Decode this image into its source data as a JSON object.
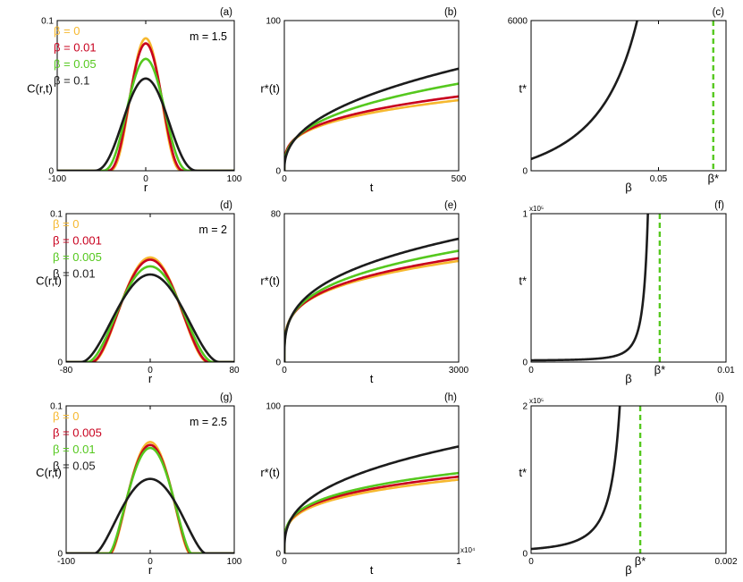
{
  "chart_data": [
    {
      "id": "a",
      "panel_label": "(a)",
      "type": "line",
      "xlabel": "r",
      "ylabel": "C(r,t)",
      "xlim": [
        -100,
        100
      ],
      "ylim": [
        0,
        0.1
      ],
      "xticks": [
        {
          "v": -100,
          "l": "-100"
        },
        {
          "v": 0,
          "l": "0"
        },
        {
          "v": 100,
          "l": "100"
        }
      ],
      "yticks": [
        {
          "v": 0,
          "l": "0"
        },
        {
          "v": 0.1,
          "l": "0.1"
        }
      ],
      "annotation": "m = 1.5",
      "series": [
        {
          "name": "β = 0",
          "color": "#f6b82f",
          "curve": "barenblatt",
          "m": 1.5,
          "peak": 0.0882,
          "radius": 42
        },
        {
          "name": "β = 0.01",
          "color": "#c8001e",
          "curve": "barenblatt",
          "m": 1.5,
          "peak": 0.0848,
          "radius": 44
        },
        {
          "name": "β = 0.05",
          "color": "#55c81e",
          "curve": "barenblatt",
          "m": 1.5,
          "peak": 0.0745,
          "radius": 50
        },
        {
          "name": "β = 0.1",
          "color": "#1c1c1c",
          "curve": "barenblatt",
          "m": 1.5,
          "peak": 0.0614,
          "radius": 60
        }
      ]
    },
    {
      "id": "b",
      "panel_label": "(b)",
      "type": "line",
      "xlabel": "t",
      "ylabel": "r*(t)",
      "xlim": [
        0,
        500
      ],
      "ylim": [
        0,
        100
      ],
      "xticks": [
        {
          "v": 0,
          "l": "0"
        },
        {
          "v": 500,
          "l": "500"
        }
      ],
      "yticks": [
        {
          "v": 0,
          "l": "0"
        },
        {
          "v": 100,
          "l": "100"
        }
      ],
      "series": [
        {
          "name": "β = 0",
          "color": "#f6b82f",
          "curve": "power",
          "t_end": 500,
          "r_end": 47,
          "exponent": 0.286
        },
        {
          "name": "β = 0.01",
          "color": "#c8001e",
          "curve": "power",
          "t_end": 500,
          "r_end": 49.5,
          "exponent": 0.3
        },
        {
          "name": "β = 0.05",
          "color": "#55c81e",
          "curve": "power",
          "t_end": 500,
          "r_end": 58,
          "exponent": 0.36
        },
        {
          "name": "β = 0.1",
          "color": "#1c1c1c",
          "curve": "power",
          "t_end": 500,
          "r_end": 68,
          "exponent": 0.42
        }
      ]
    },
    {
      "id": "c",
      "panel_label": "(c)",
      "type": "line",
      "xlabel": "β",
      "ylabel": "t*",
      "xlim": [
        0,
        0.0765
      ],
      "ylim": [
        0,
        6000
      ],
      "xticks": [
        {
          "v": 0.05,
          "l": "0.05"
        }
      ],
      "yticks": [
        {
          "v": 0,
          "l": "0"
        },
        {
          "v": 6000,
          "l": "6000"
        }
      ],
      "beta_star": 0.0715,
      "beta_star_label": "β*",
      "series": [
        {
          "name": "t*(β)",
          "color": "#1c1c1c",
          "curve": "blowup",
          "c0": 470,
          "c1": 1450,
          "beta_star": 0.0715,
          "power": 1.8,
          "x_end": 0.0698
        }
      ]
    },
    {
      "id": "d",
      "panel_label": "(d)",
      "type": "line",
      "xlabel": "r",
      "ylabel": "C(r,t)",
      "xlim": [
        -80,
        80
      ],
      "ylim": [
        0,
        0.1
      ],
      "xticks": [
        {
          "v": -80,
          "l": "-80"
        },
        {
          "v": 0,
          "l": "0"
        },
        {
          "v": 80,
          "l": "80"
        }
      ],
      "yticks": [
        {
          "v": 0,
          "l": "0"
        },
        {
          "v": 0.1,
          "l": "0.1"
        }
      ],
      "annotation": "m = 2",
      "series": [
        {
          "name": "β = 0",
          "color": "#f6b82f",
          "curve": "barenblatt",
          "m": 2,
          "peak": 0.0705,
          "radius": 55
        },
        {
          "name": "β = 0.001",
          "color": "#c8001e",
          "curve": "barenblatt",
          "m": 2,
          "peak": 0.069,
          "radius": 56
        },
        {
          "name": "β = 0.005",
          "color": "#55c81e",
          "curve": "barenblatt",
          "m": 2,
          "peak": 0.0645,
          "radius": 60
        },
        {
          "name": "β = 0.01",
          "color": "#1c1c1c",
          "curve": "barenblatt",
          "m": 2,
          "peak": 0.059,
          "radius": 66
        }
      ]
    },
    {
      "id": "e",
      "panel_label": "(e)",
      "type": "line",
      "xlabel": "t",
      "ylabel": "r*(t)",
      "xlim": [
        0,
        3000
      ],
      "ylim": [
        0,
        80
      ],
      "xticks": [
        {
          "v": 0,
          "l": "0"
        },
        {
          "v": 3000,
          "l": "3000"
        }
      ],
      "yticks": [
        {
          "v": 0,
          "l": "0"
        },
        {
          "v": 80,
          "l": "80"
        }
      ],
      "series": [
        {
          "name": "β = 0",
          "color": "#f6b82f",
          "curve": "power",
          "t_end": 3000,
          "r_end": 54.5,
          "exponent": 0.25
        },
        {
          "name": "β = 0.001",
          "color": "#c8001e",
          "curve": "power",
          "t_end": 3000,
          "r_end": 56,
          "exponent": 0.26
        },
        {
          "name": "β = 0.005",
          "color": "#55c81e",
          "curve": "power",
          "t_end": 3000,
          "r_end": 60,
          "exponent": 0.28
        },
        {
          "name": "β = 0.01",
          "color": "#1c1c1c",
          "curve": "power",
          "t_end": 3000,
          "r_end": 66.5,
          "exponent": 0.31
        }
      ]
    },
    {
      "id": "f",
      "panel_label": "(f)",
      "type": "line",
      "xlabel": "β",
      "ylabel": "t*",
      "xlim": [
        0,
        0.01
      ],
      "ylim": [
        0,
        1
      ],
      "multiplier_label": "x10⁵",
      "xticks": [
        {
          "v": 0,
          "l": "0"
        },
        {
          "v": 0.01,
          "l": "0.01"
        }
      ],
      "yticks": [
        {
          "v": 0,
          "l": "0"
        },
        {
          "v": 1,
          "l": "1"
        }
      ],
      "beta_star": 0.0066,
      "beta_star_label": "β*",
      "series": [
        {
          "name": "t*(β)",
          "color": "#1c1c1c",
          "curve": "blowup",
          "c0": 0.012,
          "c1": 0.002,
          "beta_star": 0.0066,
          "power": 2.6,
          "x_end": 0.00656
        }
      ]
    },
    {
      "id": "g",
      "panel_label": "(g)",
      "type": "line",
      "xlabel": "r",
      "ylabel": "C(r,t)",
      "xlim": [
        -100,
        100
      ],
      "ylim": [
        0,
        0.1
      ],
      "xticks": [
        {
          "v": -100,
          "l": "-100"
        },
        {
          "v": 0,
          "l": "0"
        },
        {
          "v": 100,
          "l": "100"
        }
      ],
      "yticks": [
        {
          "v": 0,
          "l": "0"
        },
        {
          "v": 0.1,
          "l": "0.1"
        }
      ],
      "annotation": "m = 2.5",
      "series": [
        {
          "name": "β = 0",
          "color": "#f6b82f",
          "curve": "barenblatt",
          "m": 2.5,
          "peak": 0.0755,
          "radius": 47
        },
        {
          "name": "β = 0.005",
          "color": "#c8001e",
          "curve": "barenblatt",
          "m": 2.5,
          "peak": 0.0735,
          "radius": 48
        },
        {
          "name": "β = 0.01",
          "color": "#55c81e",
          "curve": "barenblatt",
          "m": 2.5,
          "peak": 0.0715,
          "radius": 49
        },
        {
          "name": "β = 0.05",
          "color": "#1c1c1c",
          "curve": "barenblatt",
          "m": 2.5,
          "peak": 0.0505,
          "radius": 66
        }
      ]
    },
    {
      "id": "h",
      "panel_label": "(h)",
      "type": "line",
      "xlabel": "t",
      "ylabel": "r*(t)",
      "xlim": [
        0,
        1
      ],
      "ylim": [
        0,
        100
      ],
      "multiplier_label": "x10⁴",
      "xticks": [
        {
          "v": 0,
          "l": "0"
        },
        {
          "v": 1,
          "l": "1"
        }
      ],
      "yticks": [
        {
          "v": 0,
          "l": "0"
        },
        {
          "v": 100,
          "l": "100"
        }
      ],
      "series": [
        {
          "name": "β = 0",
          "color": "#f6b82f",
          "curve": "power",
          "t_end": 1,
          "r_end": 50,
          "exponent": 0.25
        },
        {
          "name": "β = 0.005",
          "color": "#c8001e",
          "curve": "power",
          "t_end": 1,
          "r_end": 52,
          "exponent": 0.25
        },
        {
          "name": "β = 0.01",
          "color": "#55c81e",
          "curve": "power",
          "t_end": 1,
          "r_end": 54.5,
          "exponent": 0.26
        },
        {
          "name": "β = 0.05",
          "color": "#1c1c1c",
          "curve": "power",
          "t_end": 1,
          "r_end": 72.5,
          "exponent": 0.35
        }
      ]
    },
    {
      "id": "i",
      "panel_label": "(i)",
      "type": "line",
      "xlabel": "β",
      "ylabel": "t*",
      "xlim": [
        0,
        0.002
      ],
      "ylim": [
        0,
        2
      ],
      "multiplier_label": "x10⁵",
      "xticks": [
        {
          "v": 0,
          "l": "0"
        },
        {
          "v": 0.002,
          "l": "0.002"
        }
      ],
      "yticks": [
        {
          "v": 0,
          "l": "0"
        },
        {
          "v": 2,
          "l": "2"
        }
      ],
      "beta_star": 0.00112,
      "beta_star_label": "β*",
      "series": [
        {
          "name": "t*(β)",
          "color": "#1c1c1c",
          "curve": "blowup",
          "c0": 0.06,
          "c1": 0.05,
          "beta_star": 0.00112,
          "power": 2.2,
          "x_end": 0.001113
        }
      ]
    }
  ]
}
